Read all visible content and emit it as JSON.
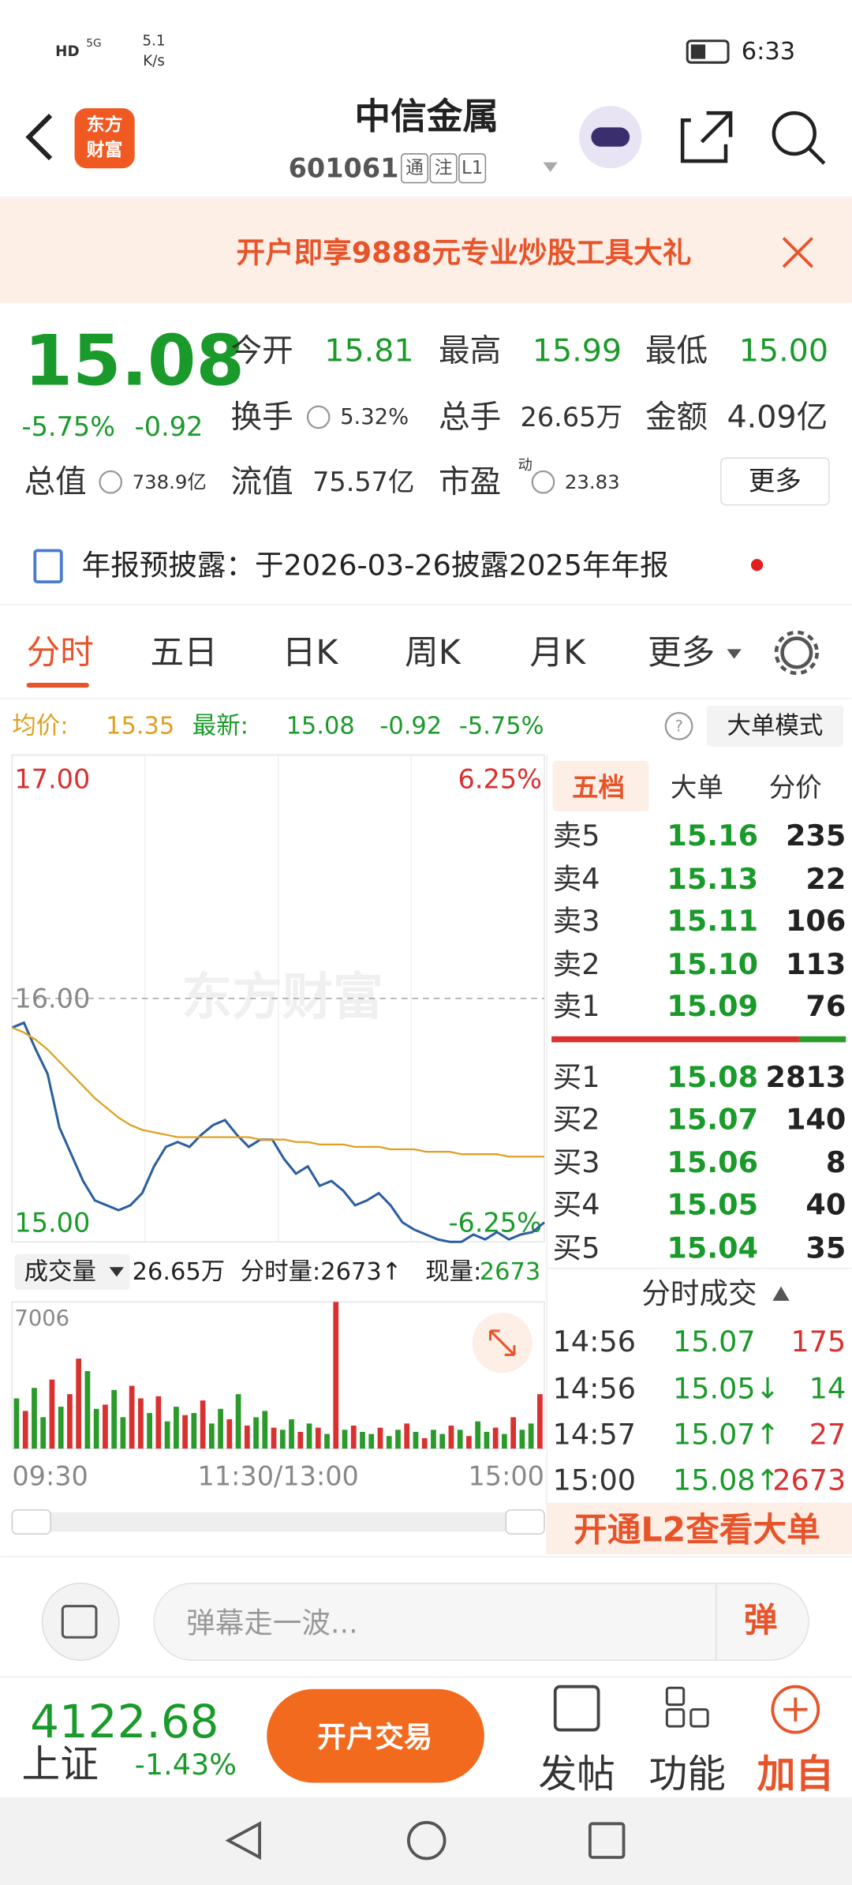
{
  "status_bar": {
    "hd": "HD",
    "network": "5G",
    "speed": "5.1",
    "speed_unit": "K/s",
    "time": "6:33"
  },
  "header": {
    "title": "中信金属",
    "code": "601061",
    "badges": [
      "通",
      "注",
      "L1"
    ]
  },
  "banner": {
    "text": "开户即享9888元专业炒股工具大礼"
  },
  "quote": {
    "price": "15.08",
    "change_pct": "-5.75%",
    "change": "-0.92",
    "fields": [
      {
        "label": "今开",
        "value": "15.81"
      },
      {
        "label": "最高",
        "value": "15.99"
      },
      {
        "label": "最低",
        "value": "15.00"
      },
      {
        "label": "换手",
        "value": "5.32%"
      },
      {
        "label": "总手",
        "value": "26.65万"
      },
      {
        "label": "金额",
        "value": "4.09亿"
      },
      {
        "label": "总值",
        "value": "738.9亿"
      },
      {
        "label": "流值",
        "value": "75.57亿"
      },
      {
        "label": "市盈",
        "sup": "动",
        "value": "23.83"
      }
    ],
    "more": "更多"
  },
  "notice": "年报预披露：于2026-03-26披露2025年年报",
  "tabs": [
    "分时",
    "五日",
    "日K",
    "周K",
    "月K",
    "更多"
  ],
  "info_line": {
    "avg_label": "均价:",
    "avg": "15.35",
    "latest_label": "最新:",
    "latest": "15.08",
    "change": "-0.92",
    "change_pct": "-5.75%",
    "mode": "大单模式"
  },
  "chart_data": [
    {
      "type": "line",
      "watermark": "东方财富",
      "series": [
        {
          "color": "#2c5f9e",
          "values": [
            15.88,
            15.9,
            15.79,
            15.69,
            15.47,
            15.36,
            15.25,
            15.17,
            15.15,
            15.13,
            15.15,
            15.2,
            15.31,
            15.39,
            15.41,
            15.39,
            15.44,
            15.48,
            15.5,
            15.44,
            15.39,
            15.42,
            15.42,
            15.34,
            15.28,
            15.31,
            15.23,
            15.25,
            15.21,
            15.15,
            15.17,
            15.2,
            15.15,
            15.08,
            15.05,
            15.03,
            15.01,
            15.0,
            15.0,
            15.03,
            15.01,
            15.04,
            15.01,
            15.03,
            15.04,
            15.08
          ]
        },
        {
          "color": "#e0a020",
          "values": [
            15.88,
            15.86,
            15.83,
            15.79,
            15.74,
            15.69,
            15.64,
            15.59,
            15.55,
            15.51,
            15.48,
            15.46,
            15.45,
            15.44,
            15.43,
            15.43,
            15.43,
            15.43,
            15.43,
            15.43,
            15.43,
            15.42,
            15.42,
            15.42,
            15.41,
            15.41,
            15.4,
            15.4,
            15.4,
            15.39,
            15.39,
            15.39,
            15.38,
            15.38,
            15.38,
            15.37,
            15.37,
            15.37,
            15.36,
            15.36,
            15.36,
            15.36,
            15.35,
            15.35,
            15.35,
            15.35
          ]
        }
      ],
      "ylim": [
        15,
        17
      ],
      "yticks": [
        {
          "value": 15,
          "label": "15.00"
        },
        {
          "value": 16,
          "label": "16.00"
        },
        {
          "value": 17,
          "label": "17.00"
        }
      ],
      "y2lim": [
        -6.25,
        6.25
      ],
      "y2ticks": [
        {
          "value": -6.25,
          "label": "-6.25%"
        },
        {
          "value": 6.25,
          "label": "6.25%"
        }
      ],
      "x_labels": [
        "09:30",
        "11:30/13:00",
        "15:00"
      ]
    },
    {
      "type": "bar",
      "label": "成交量",
      "total": "26.65万",
      "minute_vol": "分时量:2673↑",
      "current_label": "现量:",
      "current": "2673",
      "ylim": [
        0,
        7006
      ],
      "yticks": [
        7006
      ],
      "values": [
        2400,
        1800,
        2900,
        1500,
        3300,
        2000,
        2600,
        4300,
        3700,
        1900,
        2100,
        2800,
        1500,
        3000,
        2400,
        1700,
        2500,
        1300,
        2000,
        1600,
        1700,
        2300,
        1200,
        1900,
        1400,
        2600,
        1100,
        1500,
        1800,
        1000,
        900,
        1400,
        800,
        1200,
        1000,
        700,
        7006,
        900,
        1100,
        800,
        700,
        1000,
        600,
        900,
        1200,
        800,
        500,
        900,
        700,
        1100,
        900,
        600,
        1300,
        800,
        1000,
        700,
        1500,
        900,
        1200,
        2600
      ],
      "colors": [
        "#2a9a2a",
        "#d93030",
        "#2a9a2a",
        "#2a9a2a",
        "#d93030",
        "#2a9a2a",
        "#d93030",
        "#d93030",
        "#2a9a2a",
        "#2a9a2a",
        "#d93030",
        "#2a9a2a",
        "#2a9a2a",
        "#d93030",
        "#d93030",
        "#2a9a2a",
        "#d93030",
        "#2a9a2a",
        "#2a9a2a",
        "#d93030",
        "#2a9a2a",
        "#d93030",
        "#2a9a2a",
        "#2a9a2a",
        "#d93030",
        "#2a9a2a",
        "#d93030",
        "#2a9a2a",
        "#2a9a2a",
        "#d93030",
        "#2a9a2a",
        "#2a9a2a",
        "#d93030",
        "#2a9a2a",
        "#d93030",
        "#2a9a2a",
        "#d93030",
        "#2a9a2a",
        "#d93030",
        "#2a9a2a",
        "#2a9a2a",
        "#d93030",
        "#2a9a2a",
        "#2a9a2a",
        "#d93030",
        "#2a9a2a",
        "#d93030",
        "#2a9a2a",
        "#2a9a2a",
        "#d93030",
        "#2a9a2a",
        "#d93030",
        "#2a9a2a",
        "#2a9a2a",
        "#d93030",
        "#2a9a2a",
        "#d93030",
        "#2a9a2a",
        "#2a9a2a",
        "#d93030"
      ]
    }
  ],
  "order_book": {
    "tabs": [
      "五档",
      "大单",
      "分价"
    ],
    "asks": [
      [
        "卖5",
        "15.16",
        "235"
      ],
      [
        "卖4",
        "15.13",
        "22"
      ],
      [
        "卖3",
        "15.11",
        "106"
      ],
      [
        "卖2",
        "15.10",
        "113"
      ],
      [
        "卖1",
        "15.09",
        "76"
      ]
    ],
    "bids": [
      [
        "买1",
        "15.08",
        "2813"
      ],
      [
        "买2",
        "15.07",
        "140"
      ],
      [
        "买3",
        "15.06",
        "8"
      ],
      [
        "买4",
        "15.05",
        "40"
      ],
      [
        "买5",
        "15.04",
        "35"
      ]
    ]
  },
  "trades": {
    "title": "分时成交",
    "rows": [
      [
        "14:56",
        "15.07",
        "175"
      ],
      [
        "14:56",
        "15.05↓",
        "14"
      ],
      [
        "14:57",
        "15.07↑",
        "27"
      ],
      [
        "15:00",
        "15.08↑",
        "2673"
      ]
    ]
  },
  "l2_banner": "开通L2查看大单",
  "comment": {
    "placeholder": "弹幕走一波...",
    "button": "弹"
  },
  "footer": {
    "index_value": "4122.68",
    "index_name": "上证",
    "index_change": "-1.43%",
    "trade": "开户交易",
    "actions": [
      "发帖",
      "功能",
      "加自"
    ]
  }
}
